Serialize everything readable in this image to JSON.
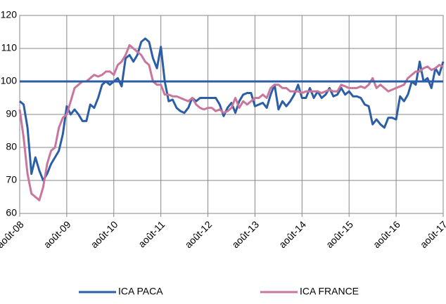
{
  "chart_data": {
    "type": "line",
    "categories": [
      "août-08",
      null,
      null,
      null,
      null,
      null,
      null,
      null,
      null,
      null,
      null,
      null,
      "août-09",
      null,
      null,
      null,
      null,
      null,
      null,
      null,
      null,
      null,
      null,
      null,
      "août-10",
      null,
      null,
      null,
      null,
      null,
      null,
      null,
      null,
      null,
      null,
      null,
      "août-11",
      null,
      null,
      null,
      null,
      null,
      null,
      null,
      null,
      null,
      null,
      null,
      "août-12",
      null,
      null,
      null,
      null,
      null,
      null,
      null,
      null,
      null,
      null,
      null,
      "août-13",
      null,
      null,
      null,
      null,
      null,
      null,
      null,
      null,
      null,
      null,
      null,
      "août-14",
      null,
      null,
      null,
      null,
      null,
      null,
      null,
      null,
      null,
      null,
      null,
      "août-15",
      null,
      null,
      null,
      null,
      null,
      null,
      null,
      null,
      null,
      null,
      null,
      "août-16",
      null,
      null,
      null,
      null,
      null,
      null,
      null,
      null,
      null,
      null,
      null,
      "août-17"
    ],
    "series": [
      {
        "name": "ICA PACA",
        "color": "#2b5ea7",
        "values": [
          94,
          93,
          86,
          72,
          77,
          73,
          70,
          72,
          75,
          77,
          79,
          84,
          92.5,
          90,
          91.5,
          90,
          88,
          88,
          93,
          92,
          95,
          99,
          100,
          99,
          100,
          101,
          98.5,
          107,
          108,
          106,
          108,
          112,
          113,
          112,
          107,
          104,
          110.5,
          100,
          94,
          94.5,
          92,
          91,
          90.5,
          92,
          95,
          94,
          95,
          95,
          95,
          95,
          95,
          93,
          89.5,
          92,
          93.5,
          90.5,
          94,
          96,
          96.5,
          96.5,
          92.5,
          93,
          93.5,
          92,
          96,
          99,
          91.5,
          94,
          92.5,
          94,
          96,
          99,
          95,
          95,
          98,
          95,
          97,
          95,
          96,
          98,
          95.5,
          96,
          98,
          96,
          97,
          95.5,
          95.5,
          95,
          93,
          92.5,
          87,
          88.5,
          87,
          86,
          89,
          89,
          88.5,
          95.5,
          94,
          96,
          100,
          99,
          106,
          100,
          101,
          98,
          104,
          102,
          106
        ]
      },
      {
        "name": "ICA FRANCE",
        "color": "#c9769c",
        "values": [
          91.5,
          83,
          72,
          66,
          65,
          64,
          68,
          75,
          79,
          80,
          86,
          89,
          90,
          94,
          98,
          99,
          100,
          100,
          101,
          102,
          101.5,
          102,
          103,
          103,
          102,
          105,
          106,
          108,
          111,
          110,
          109,
          108,
          106,
          105,
          100,
          99,
          99,
          96,
          96,
          95.5,
          95.5,
          95,
          94.5,
          94,
          95,
          93,
          92,
          91.5,
          92,
          92,
          91,
          91.5,
          90.5,
          91,
          92,
          95,
          92,
          94,
          93,
          94,
          95,
          95,
          96,
          95,
          98,
          99,
          99,
          98,
          98,
          97,
          97,
          97,
          96.5,
          97,
          97,
          97,
          97,
          96.5,
          97,
          97.5,
          97,
          97,
          99,
          98.5,
          98,
          98,
          98,
          98.5,
          98,
          99,
          101,
          98,
          99,
          98,
          97,
          97.5,
          98,
          98.5,
          99,
          101,
          102,
          103,
          103,
          104,
          104.5,
          103.5,
          104,
          105,
          104.5
        ]
      }
    ],
    "reference_line": 100,
    "ylim": [
      60,
      120
    ],
    "yticks": [
      60,
      70,
      80,
      90,
      100,
      110,
      120
    ],
    "grid": true
  }
}
